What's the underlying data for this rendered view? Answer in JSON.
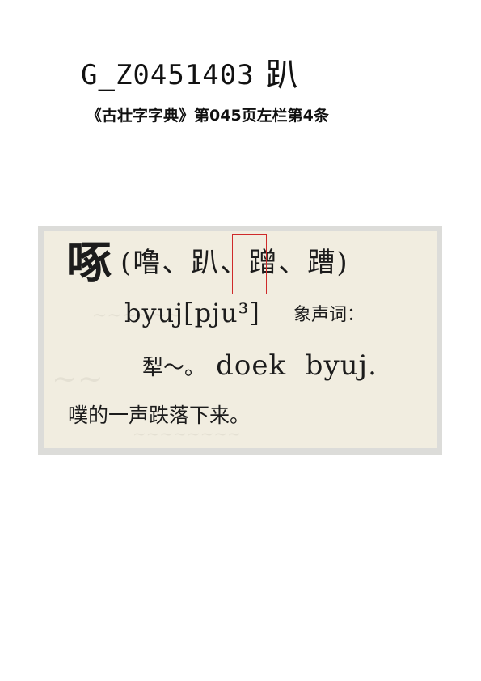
{
  "header": {
    "code": "G_Z0451403",
    "glyph": "趴"
  },
  "source": {
    "text": "《古壮字字典》第045页左栏第4条"
  },
  "entry": {
    "headword": "啄",
    "variants": "(噜、趴、蹭、蹧)",
    "romanization": "byuj[pju³]",
    "part_of_speech": "象声词：",
    "example_cjk": "犁～。",
    "example_latin": "doek  byuj.",
    "gloss": "噗的一声跌落下来。"
  },
  "colors": {
    "highlight_box": "#cf2a2a",
    "scan_background": "#f1ede0",
    "scan_frame": "#dcdcd9"
  }
}
